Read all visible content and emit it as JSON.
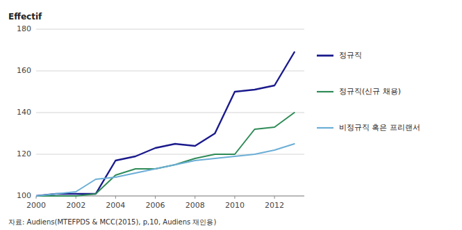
{
  "chart_data": {
    "type": "line",
    "ylabel": "Effectif",
    "caption": "자료: Audiens(MTEFPDS & MCC(2015), p,10, Audiens 재인용)",
    "x": [
      2000,
      2001,
      2002,
      2003,
      2004,
      2005,
      2006,
      2007,
      2008,
      2009,
      2010,
      2011,
      2012,
      2013
    ],
    "series": [
      {
        "name": "정규직",
        "color": "#1a1a8c",
        "values": [
          100,
          101,
          101,
          101,
          117,
          119,
          123,
          125,
          124,
          130,
          150,
          151,
          153,
          169
        ]
      },
      {
        "name": "정규직(신규 채용)",
        "color": "#2e8b57",
        "values": [
          100,
          100,
          100,
          101,
          110,
          113,
          113,
          115,
          118,
          120,
          120,
          132,
          133,
          140
        ]
      },
      {
        "name": "비정규직 혹은 프리랜서",
        "color": "#6baed6",
        "values": [
          100,
          101,
          102,
          108,
          109,
          111,
          113,
          115,
          117,
          118,
          119,
          120,
          122,
          125
        ]
      }
    ],
    "xlim": [
      2000,
      2013.5
    ],
    "xticks": [
      2000,
      2002,
      2004,
      2006,
      2008,
      2010,
      2012
    ],
    "ylim": [
      100,
      180
    ],
    "yticks": [
      100,
      120,
      140,
      160,
      180
    ],
    "grid": true,
    "legend": "right"
  }
}
